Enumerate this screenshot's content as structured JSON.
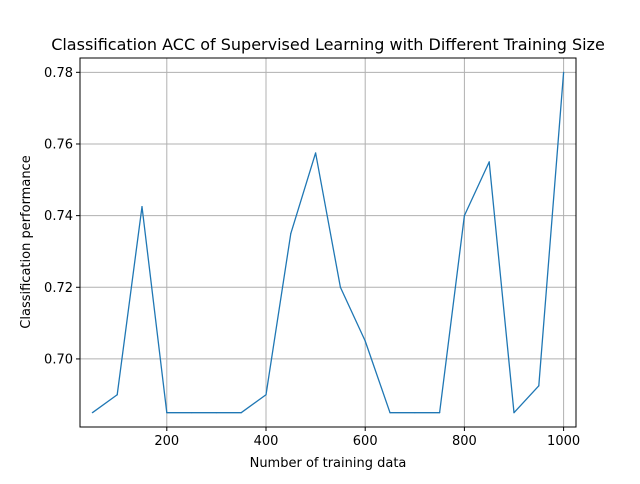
{
  "chart_data": {
    "type": "line",
    "title": "Classification ACC of Supervised Learning with Different Training Size",
    "xlabel": "Number of training data",
    "ylabel": "Classification performance",
    "xlim": [
      25,
      1025
    ],
    "ylim": [
      0.681,
      0.784
    ],
    "xticks": [
      200,
      400,
      600,
      800,
      1000
    ],
    "yticks": [
      0.7,
      0.72,
      0.74,
      0.76,
      0.78
    ],
    "xtick_labels": [
      "200",
      "400",
      "600",
      "800",
      "1000"
    ],
    "ytick_labels": [
      "0.70",
      "0.72",
      "0.74",
      "0.76",
      "0.78"
    ],
    "grid": true,
    "series": [
      {
        "color": "#1f77b4",
        "x": [
          50,
          100,
          150,
          200,
          250,
          300,
          350,
          400,
          450,
          500,
          550,
          600,
          650,
          700,
          750,
          800,
          850,
          900,
          950,
          1000
        ],
        "y": [
          0.685,
          0.69,
          0.7425,
          0.685,
          0.685,
          0.685,
          0.685,
          0.69,
          0.735,
          0.7575,
          0.72,
          0.705,
          0.685,
          0.685,
          0.685,
          0.74,
          0.755,
          0.685,
          0.6925,
          0.78
        ]
      }
    ]
  }
}
